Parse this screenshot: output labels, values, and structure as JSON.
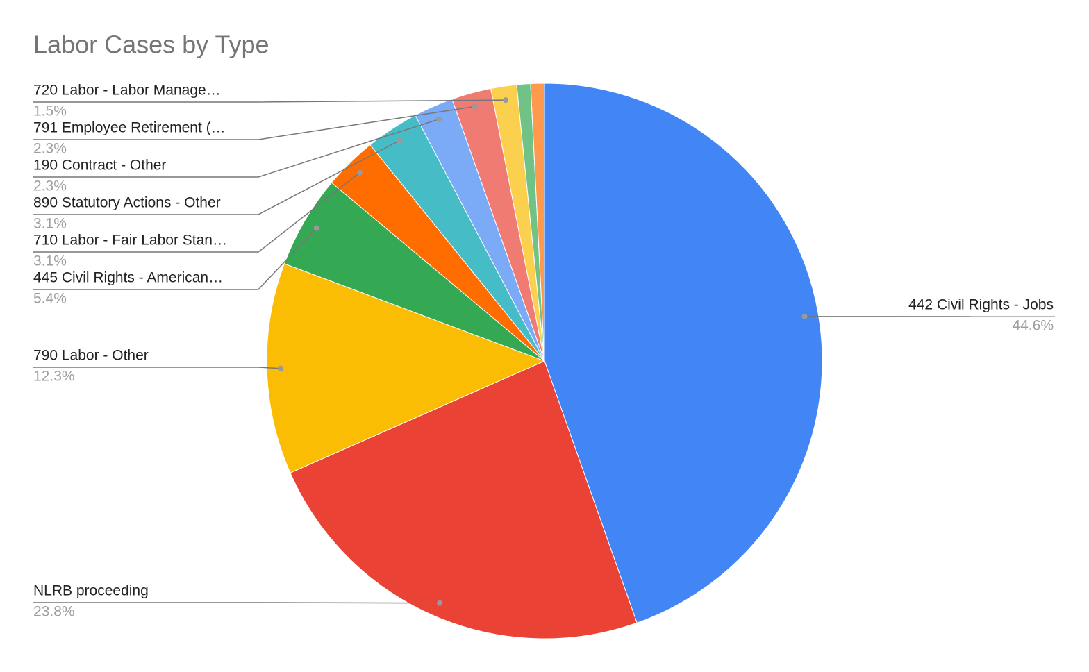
{
  "chart_data": {
    "type": "pie",
    "title": "Labor Cases by Type",
    "categories": [
      "442 Civil Rights - Jobs",
      "NLRB proceeding",
      "790 Labor - Other",
      "445 Civil Rights - American…",
      "710 Labor - Fair Labor Stan…",
      "890 Statutory Actions - Other",
      "190 Contract - Other",
      "791 Employee Retirement (…",
      "720 Labor - Labor Manage…",
      null,
      null
    ],
    "values": [
      44.6,
      23.8,
      12.3,
      5.4,
      3.1,
      3.1,
      2.3,
      2.3,
      1.5,
      0.8,
      0.8
    ],
    "value_labels": [
      "44.6%",
      "23.8%",
      "12.3%",
      "5.4%",
      "3.1%",
      "3.1%",
      "2.3%",
      "2.3%",
      "1.5%",
      null,
      null
    ],
    "colors": [
      "#4285f4",
      "#ea4335",
      "#fbbc04",
      "#34a853",
      "#ff6d01",
      "#46bdc6",
      "#7baaf7",
      "#f07b72",
      "#fcd04f",
      "#71c287",
      "#ff994d"
    ]
  }
}
